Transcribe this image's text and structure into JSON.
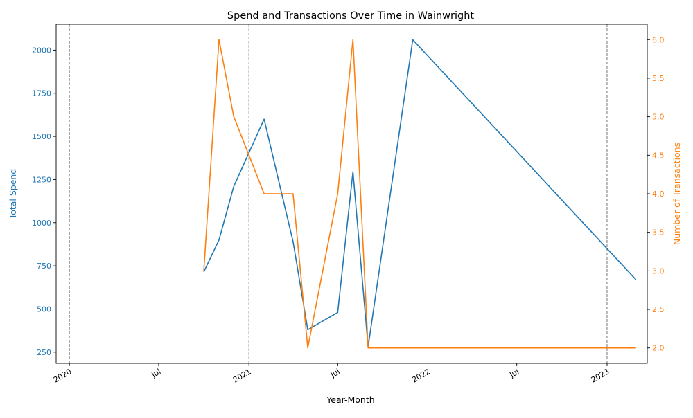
{
  "chart_data": {
    "type": "line",
    "title": "Spend and Transactions Over Time in Wainwright",
    "xlabel": "Year-Month",
    "ylabel_left": "Total Spend",
    "ylabel_right": "Number of Transactions",
    "xlim": [
      "2019-12-05",
      "2023-03-24"
    ],
    "ylim_left": [
      185,
      2150
    ],
    "ylim_right": [
      1.8,
      6.2
    ],
    "x_ticks": [
      {
        "date": "2020-01-01",
        "label": "2020"
      },
      {
        "date": "2020-07-01",
        "label": "Jul"
      },
      {
        "date": "2021-01-01",
        "label": "2021"
      },
      {
        "date": "2021-07-01",
        "label": "Jul"
      },
      {
        "date": "2022-01-01",
        "label": "2022"
      },
      {
        "date": "2022-07-01",
        "label": "Jul"
      },
      {
        "date": "2023-01-01",
        "label": "2023"
      }
    ],
    "y_ticks_left": [
      250,
      500,
      750,
      1000,
      1250,
      1500,
      1750,
      2000
    ],
    "y_tick_labels_left": [
      "250",
      "500",
      "750",
      "1000",
      "1250",
      "1500",
      "1750",
      "2000"
    ],
    "y_ticks_right": [
      2.0,
      2.5,
      3.0,
      3.5,
      4.0,
      4.5,
      5.0,
      5.5,
      6.0
    ],
    "y_tick_labels_right": [
      "2.0",
      "2.5",
      "3.0",
      "3.5",
      "4.0",
      "4.5",
      "5.0",
      "5.5",
      "6.0"
    ],
    "vertical_lines": [
      "2020-01-01",
      "2021-01-01",
      "2023-01-01"
    ],
    "series": [
      {
        "axis": "left",
        "color": "#1f77b4",
        "points": [
          {
            "x": "2020-10-01",
            "y": 715
          },
          {
            "x": "2020-11-01",
            "y": 900
          },
          {
            "x": "2020-12-01",
            "y": 1210
          },
          {
            "x": "2021-02-01",
            "y": 1600
          },
          {
            "x": "2021-04-01",
            "y": 890
          },
          {
            "x": "2021-05-01",
            "y": 380
          },
          {
            "x": "2021-07-01",
            "y": 480
          },
          {
            "x": "2021-08-01",
            "y": 1295
          },
          {
            "x": "2021-09-01",
            "y": 280
          },
          {
            "x": "2021-12-01",
            "y": 2060
          },
          {
            "x": "2023-03-01",
            "y": 670
          }
        ]
      },
      {
        "axis": "right",
        "color": "#ff7f0e",
        "points": [
          {
            "x": "2020-10-01",
            "y": 3
          },
          {
            "x": "2020-11-01",
            "y": 6
          },
          {
            "x": "2020-12-01",
            "y": 5
          },
          {
            "x": "2021-02-01",
            "y": 4
          },
          {
            "x": "2021-04-01",
            "y": 4
          },
          {
            "x": "2021-05-01",
            "y": 2
          },
          {
            "x": "2021-07-01",
            "y": 4
          },
          {
            "x": "2021-08-01",
            "y": 6
          },
          {
            "x": "2021-09-01",
            "y": 2
          },
          {
            "x": "2021-12-01",
            "y": 2
          },
          {
            "x": "2023-03-01",
            "y": 2
          }
        ]
      }
    ],
    "grid": false,
    "colors": {
      "left_axis": "#1f77b4",
      "right_axis": "#ff7f0e",
      "vline": "#808080",
      "axis": "#000000"
    }
  }
}
